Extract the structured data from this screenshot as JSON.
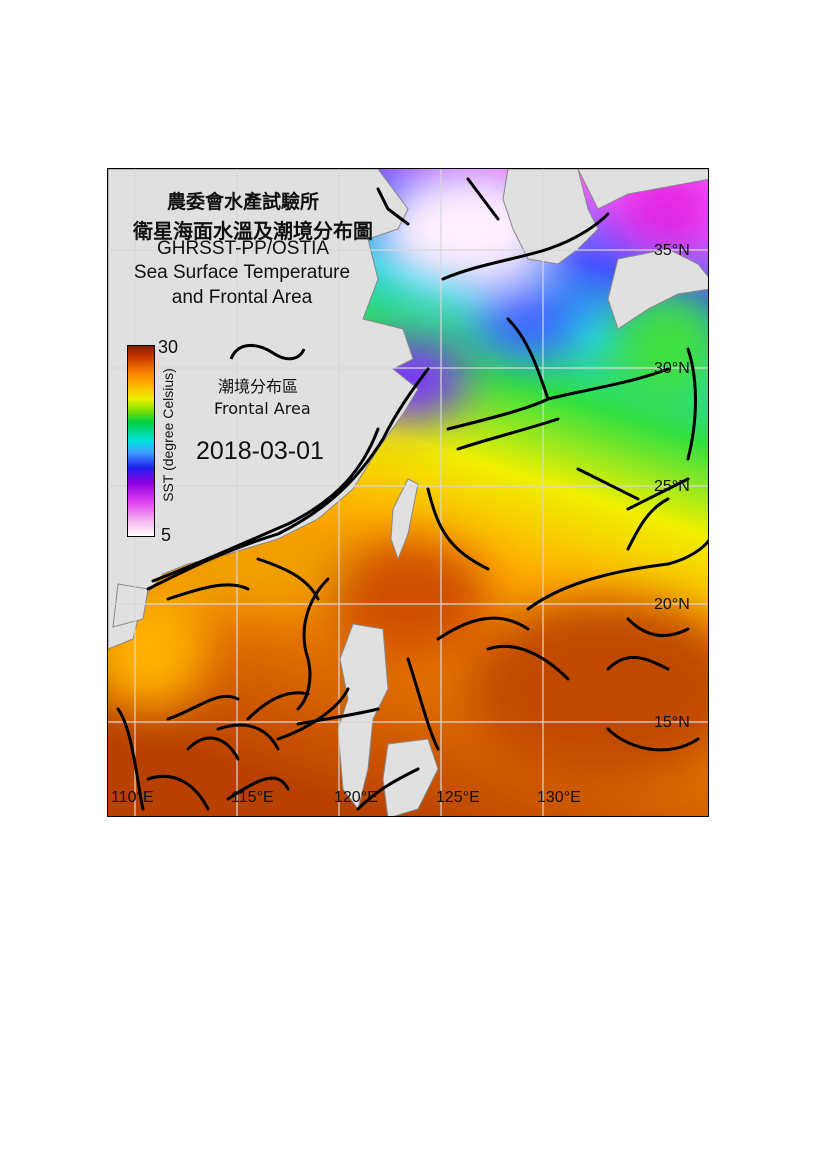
{
  "title": {
    "zh_line1": "農委會水產試驗所",
    "zh_line2": "衛星海面水溫及潮境分布圖",
    "dataset": "GHRSST-PP/OSTIA",
    "en_line1": "Sea Surface Temperature",
    "en_line2": "and Frontal Area"
  },
  "legend": {
    "front_zh": "潮境分布區",
    "front_en": "Frontal Area",
    "colorbar_label": "SST (degree Celsius)",
    "colorbar_max": "30",
    "colorbar_min": "5",
    "front_line_color": "#000000"
  },
  "date": "2018-03-01",
  "axes": {
    "lon_labels": [
      "110°E",
      "115°E",
      "120°E",
      "125°E",
      "130°E"
    ],
    "lat_labels": [
      "35°N",
      "30°N",
      "25°N",
      "20°N",
      "15°N"
    ]
  },
  "colors": {
    "land": "#e0e0e0",
    "grid": "#d8d8d8",
    "warm": "#d05a00",
    "cold": "#ff80ff"
  }
}
